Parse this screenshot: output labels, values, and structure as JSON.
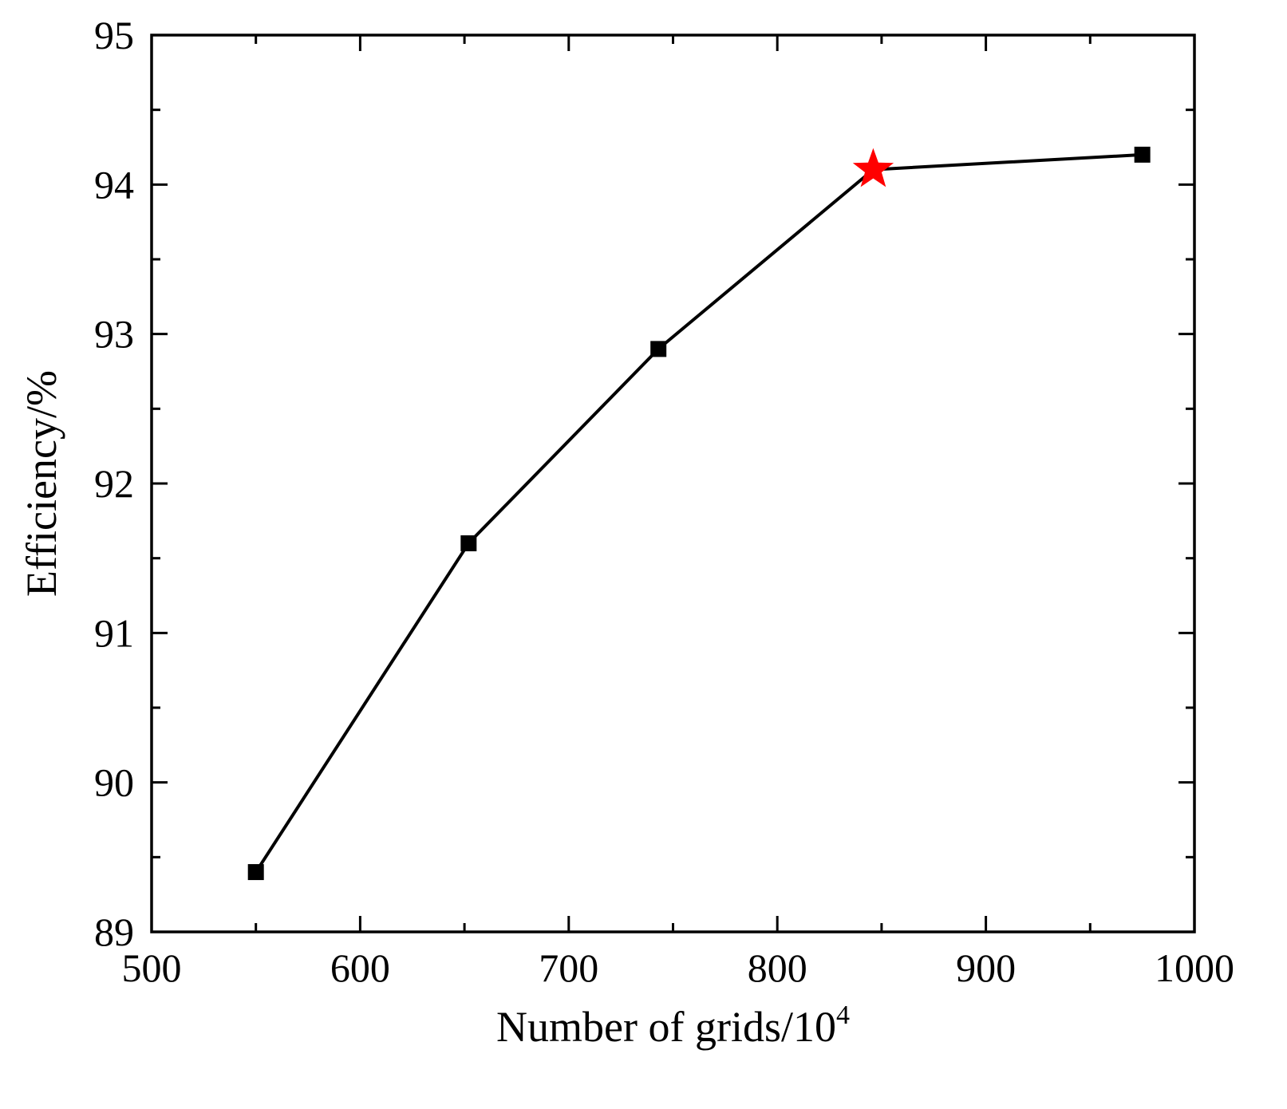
{
  "chart_data": {
    "type": "line",
    "title": "",
    "xlabel": {
      "text": "Number of grids/10",
      "superscript": "4"
    },
    "ylabel": "Efficiency/%",
    "xlim": [
      500,
      1000
    ],
    "ylim": [
      89,
      95
    ],
    "x_ticks": [
      500,
      600,
      700,
      800,
      900,
      1000
    ],
    "y_ticks": [
      89,
      90,
      91,
      92,
      93,
      94,
      95
    ],
    "x_minor_step": 50,
    "y_minor_step": 0.5,
    "grid": false,
    "legend": "none",
    "series": [
      {
        "color": "#000000",
        "marker": "square",
        "points": [
          {
            "x": 550,
            "y": 89.4,
            "marker": "square"
          },
          {
            "x": 652,
            "y": 91.6,
            "marker": "square"
          },
          {
            "x": 743,
            "y": 92.9,
            "marker": "square"
          },
          {
            "x": 846,
            "y": 94.1,
            "marker": "star",
            "marker_color": "#ff0000"
          },
          {
            "x": 975,
            "y": 94.2,
            "marker": "square"
          }
        ]
      }
    ]
  }
}
